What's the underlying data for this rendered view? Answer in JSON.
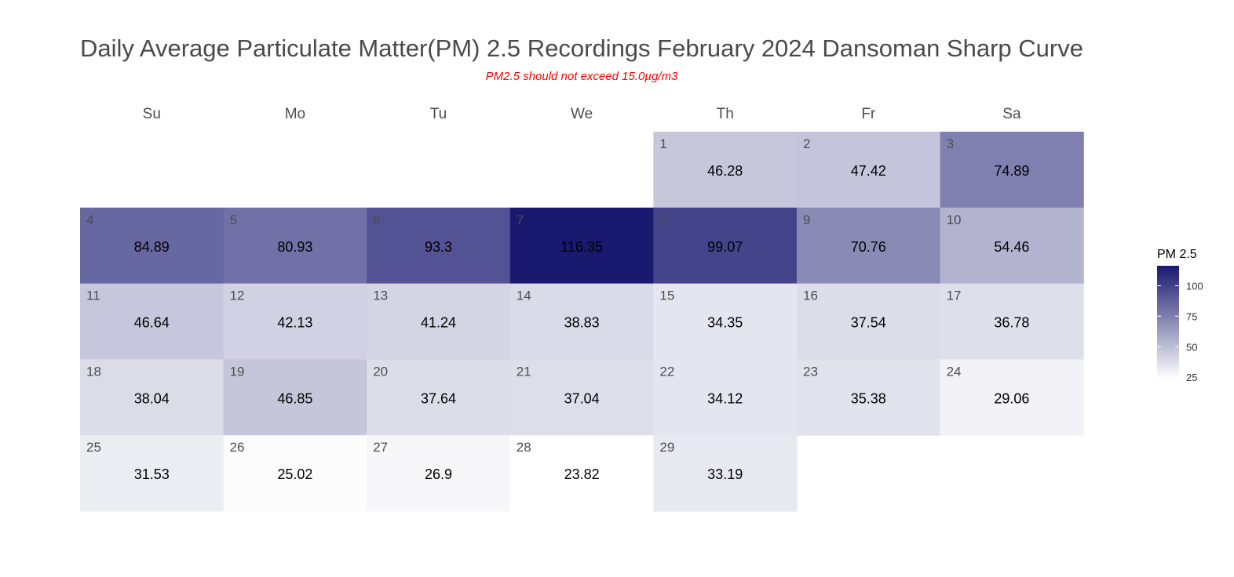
{
  "chart_data": {
    "type": "heatmap",
    "title": "Daily Average Particulate Matter(PM) 2.5 Recordings February 2024 Dansoman Sharp Curve",
    "subtitle": "PM2.5 should not exceed 15.0µg/m3",
    "weekdays": [
      "Su",
      "Mo",
      "Tu",
      "We",
      "Th",
      "Fr",
      "Sa"
    ],
    "first_weekday_index": 4,
    "days": [
      {
        "day": "1",
        "value": 46.28,
        "label": "46.28"
      },
      {
        "day": "2",
        "value": 47.42,
        "label": "47.42"
      },
      {
        "day": "3",
        "value": 74.89,
        "label": "74.89"
      },
      {
        "day": "4",
        "value": 84.89,
        "label": "84.89"
      },
      {
        "day": "5",
        "value": 80.93,
        "label": "80.93"
      },
      {
        "day": "6",
        "value": 93.3,
        "label": "93.3"
      },
      {
        "day": "7",
        "value": 116.35,
        "label": "116.35"
      },
      {
        "day": "8",
        "value": 99.07,
        "label": "99.07"
      },
      {
        "day": "9",
        "value": 70.76,
        "label": "70.76"
      },
      {
        "day": "10",
        "value": 54.46,
        "label": "54.46"
      },
      {
        "day": "11",
        "value": 46.64,
        "label": "46.64"
      },
      {
        "day": "12",
        "value": 42.13,
        "label": "42.13"
      },
      {
        "day": "13",
        "value": 41.24,
        "label": "41.24"
      },
      {
        "day": "14",
        "value": 38.83,
        "label": "38.83"
      },
      {
        "day": "15",
        "value": 34.35,
        "label": "34.35"
      },
      {
        "day": "16",
        "value": 37.54,
        "label": "37.54"
      },
      {
        "day": "17",
        "value": 36.78,
        "label": "36.78"
      },
      {
        "day": "18",
        "value": 38.04,
        "label": "38.04"
      },
      {
        "day": "19",
        "value": 46.85,
        "label": "46.85"
      },
      {
        "day": "20",
        "value": 37.64,
        "label": "37.64"
      },
      {
        "day": "21",
        "value": 37.04,
        "label": "37.04"
      },
      {
        "day": "22",
        "value": 34.12,
        "label": "34.12"
      },
      {
        "day": "23",
        "value": 35.38,
        "label": "35.38"
      },
      {
        "day": "24",
        "value": 29.06,
        "label": "29.06"
      },
      {
        "day": "25",
        "value": 31.53,
        "label": "31.53"
      },
      {
        "day": "26",
        "value": 25.02,
        "label": "25.02"
      },
      {
        "day": "27",
        "value": 26.9,
        "label": "26.9"
      },
      {
        "day": "28",
        "value": 23.82,
        "label": "23.82"
      },
      {
        "day": "29",
        "value": 33.19,
        "label": "33.19"
      }
    ],
    "legend": {
      "title": "PM 2.5",
      "ticks": [
        25,
        50,
        75,
        100
      ],
      "tick_labels": [
        "25",
        "50",
        "75",
        "100"
      ],
      "range": [
        23.82,
        116.35
      ],
      "color_low": "#ffffff",
      "color_high": "#191970"
    }
  }
}
